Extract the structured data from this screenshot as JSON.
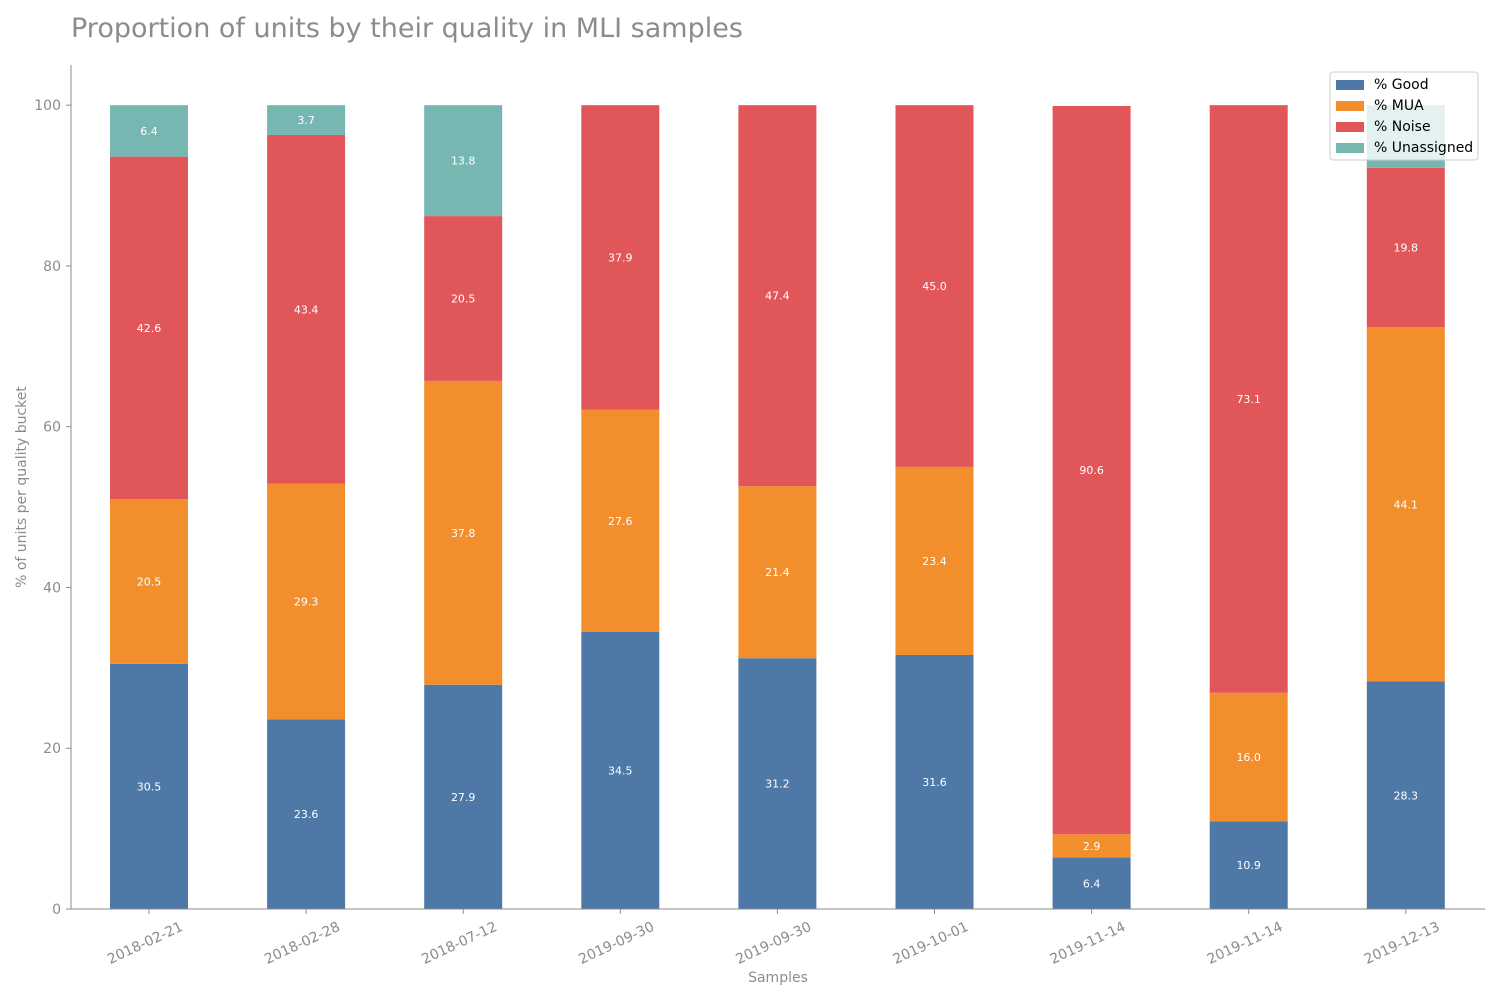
{
  "chart_data": {
    "type": "bar",
    "stacked": true,
    "title": "Proportion of units by their quality in MLI samples",
    "xlabel": "Samples",
    "ylabel": "% of units per quality bucket",
    "ylim": [
      0,
      105
    ],
    "yticks": [
      0,
      20,
      40,
      60,
      80,
      100
    ],
    "categories": [
      "2018-02-21",
      "2018-02-28",
      "2018-07-12",
      "2019-09-30",
      "2019-09-30",
      "2019-10-01",
      "2019-11-14",
      "2019-11-14",
      "2019-12-13"
    ],
    "series": [
      {
        "name": "% Good",
        "color": "#4e79a7",
        "values": [
          30.5,
          23.6,
          27.9,
          34.5,
          31.2,
          31.6,
          6.4,
          10.9,
          28.3
        ]
      },
      {
        "name": "% MUA",
        "color": "#f28e2b",
        "values": [
          20.5,
          29.3,
          37.8,
          27.6,
          21.4,
          23.4,
          2.9,
          16.0,
          44.1
        ]
      },
      {
        "name": "% Noise",
        "color": "#e15759",
        "values": [
          42.6,
          43.4,
          20.5,
          37.9,
          47.4,
          45.0,
          90.6,
          73.1,
          19.8
        ]
      },
      {
        "name": "% Unassigned",
        "color": "#76b7b2",
        "values": [
          6.4,
          3.7,
          13.8,
          0.0,
          0.0,
          0.0,
          0.0,
          0.0,
          7.8
        ]
      }
    ],
    "labels": [
      [
        "30.5",
        "23.6",
        "27.9",
        "34.5",
        "31.2",
        "31.6",
        "6.4",
        "10.9",
        "28.3"
      ],
      [
        "20.5",
        "29.3",
        "37.8",
        "27.6",
        "21.4",
        "23.4",
        "2.9",
        "16.0",
        "44.1"
      ],
      [
        "42.6",
        "43.4",
        "20.5",
        "37.9",
        "47.4",
        "45.0",
        "90.6",
        "73.1",
        "19.8"
      ],
      [
        "6.4",
        "3.7",
        "13.8",
        "",
        "",
        "",
        "",
        "",
        ""
      ]
    ],
    "legend_position": "top-right",
    "grid": false
  }
}
